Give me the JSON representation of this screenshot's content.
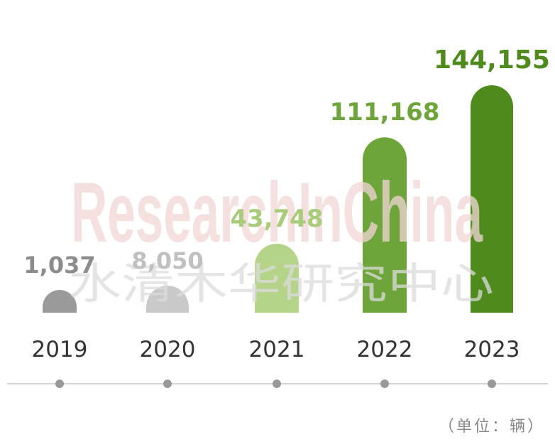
{
  "chart_data": {
    "type": "bar",
    "categories": [
      "2019",
      "2020",
      "2021",
      "2022",
      "2023"
    ],
    "values": [
      1037,
      8050,
      43748,
      111168,
      144155
    ],
    "value_labels": [
      "1,037",
      "8,050",
      "43,748",
      "111,168",
      "144,155"
    ],
    "unit": "（单位：辆）",
    "bar_colors": [
      "#9a9a9a",
      "#c9c9c9",
      "#b5d48a",
      "#6ea53a",
      "#4f8a1c"
    ],
    "label_colors": [
      "#8c8c8c",
      "#c0c0c0",
      "#a8cc7a",
      "#6ea53a",
      "#4f8a1c"
    ]
  },
  "watermark": {
    "english": "ResearchInChina",
    "chinese": "水清木华研究中心"
  },
  "colors": {
    "axis": "#aaaaaa",
    "dot": "#999999"
  }
}
